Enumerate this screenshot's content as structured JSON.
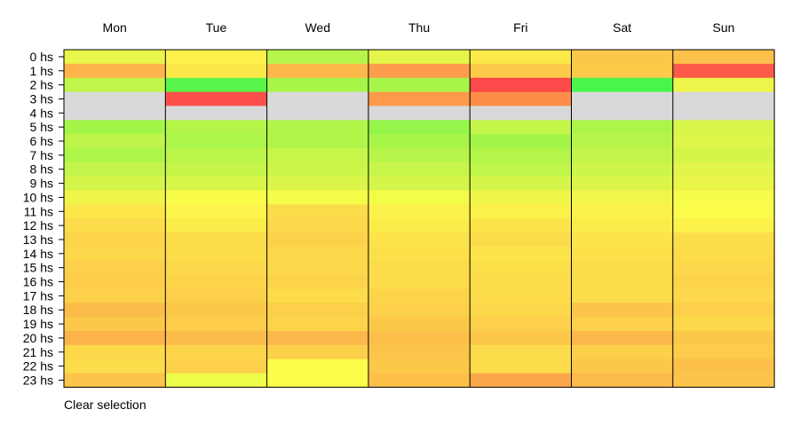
{
  "chart_data": {
    "type": "heatmap",
    "columns": [
      "Mon",
      "Tue",
      "Wed",
      "Thu",
      "Fri",
      "Sat",
      "Sun"
    ],
    "rows": [
      "0 hs",
      "1 hs",
      "2 hs",
      "3 hs",
      "4 hs",
      "5 hs",
      "6 hs",
      "7 hs",
      "8 hs",
      "9 hs",
      "10 hs",
      "11 hs",
      "12 hs",
      "13 hs",
      "14 hs",
      "15 hs",
      "16 hs",
      "17 hs",
      "18 hs",
      "19 hs",
      "20 hs",
      "21 hs",
      "22 hs",
      "23 hs"
    ],
    "cells": [
      [
        "#e8f54a",
        "#fcf04a",
        "#b8f54a",
        "#e6f54a",
        "#fcea4a",
        "#fdc74a",
        "#fdc04a"
      ],
      [
        "#fdb44a",
        "#fce84a",
        "#fdb84a",
        "#fd9c4a",
        "#fdca4a",
        "#fdca4a",
        "#fd5a4a"
      ],
      [
        "#c0f54a",
        "#5af54a",
        "#a8f54a",
        "#a8f54a",
        "#fd4a4a",
        "#4af54a",
        "#eef54a"
      ],
      [
        null,
        "#fd504a",
        null,
        "#fd9a4a",
        "#fd8e4a",
        null,
        null
      ],
      [
        null,
        null,
        null,
        null,
        null,
        null,
        null
      ],
      [
        "#a4f54a",
        "#b4f54a",
        "#b0f54a",
        "#96f54a",
        "#c4f54a",
        "#aef54a",
        "#d8f54a"
      ],
      [
        "#bef54a",
        "#acf54a",
        "#b0f54a",
        "#a8f54a",
        "#a4f54a",
        "#b8f54a",
        "#def54a"
      ],
      [
        "#aef54a",
        "#bcf54a",
        "#c8f54a",
        "#b8f54a",
        "#b4f54a",
        "#c4f54a",
        "#d4f54a"
      ],
      [
        "#c4f54a",
        "#c6f54a",
        "#cef54a",
        "#c8f54a",
        "#c0f54a",
        "#cef54a",
        "#e2f54a"
      ],
      [
        "#d4f54a",
        "#d8f54a",
        "#dcf54a",
        "#d4f54a",
        "#d6f54a",
        "#dcf54a",
        "#eaf54a"
      ],
      [
        "#f0f54a",
        "#fafc4a",
        "#f6fc4a",
        "#f4fc4a",
        "#f0f54a",
        "#f2f54a",
        "#f8fc4a"
      ],
      [
        "#fce64a",
        "#fcf44a",
        "#fcdc4a",
        "#fcf04a",
        "#fcf04a",
        "#fcf04a",
        "#fcfc4a"
      ],
      [
        "#fcdc4a",
        "#fcec4a",
        "#fcd84a",
        "#fcec4a",
        "#fce44a",
        "#fcec4a",
        "#fcf24a"
      ],
      [
        "#fcd44a",
        "#fcdc4a",
        "#fcd24a",
        "#fce44a",
        "#fcdc4a",
        "#fce44a",
        "#fcde4a"
      ],
      [
        "#fcd84a",
        "#fcdc4a",
        "#fcd84a",
        "#fce04a",
        "#fce44a",
        "#fce04a",
        "#fcdc4a"
      ],
      [
        "#fcd04a",
        "#fcd84a",
        "#fcd84a",
        "#fcdc4a",
        "#fce04a",
        "#fcdc4a",
        "#fcd84a"
      ],
      [
        "#fccc4a",
        "#fcd44a",
        "#fcd44a",
        "#fcdc4a",
        "#fcdc4a",
        "#fcdc4a",
        "#fcd44a"
      ],
      [
        "#fcd04a",
        "#fcd04a",
        "#fcdc4a",
        "#fcd44a",
        "#fcdc4a",
        "#fcdc4a",
        "#fcd84a"
      ],
      [
        "#fcbc4a",
        "#fcc84a",
        "#fcd04a",
        "#fcd04a",
        "#fcd84a",
        "#fcc44a",
        "#fcd04a"
      ],
      [
        "#fcc84a",
        "#fccc4a",
        "#fcd44a",
        "#fcc84a",
        "#fcd04a",
        "#fcd04a",
        "#fcd84a"
      ],
      [
        "#fcb44a",
        "#fcbc4a",
        "#fcb84a",
        "#fcc04a",
        "#fcc84a",
        "#fcb84a",
        "#fcc84a"
      ],
      [
        "#fcd84a",
        "#fcd44a",
        "#fcd04a",
        "#fcc44a",
        "#fcdc4a",
        "#fcd04a",
        "#fccc4a"
      ],
      [
        "#fcdc4a",
        "#fcd04a",
        "#fcfc4a",
        "#fcc84a",
        "#fcdc4a",
        "#fcc84a",
        "#fcc04a"
      ],
      [
        "#fcc44a",
        "#eefc4a",
        "#fcfc4a",
        "#fcc04a",
        "#fca84a",
        "#fcbc4a",
        "#fcc44a"
      ]
    ],
    "missing_color": "#d9d9d9",
    "grid_color": "#000000"
  },
  "controls": {
    "clear_label": "Clear selection"
  }
}
